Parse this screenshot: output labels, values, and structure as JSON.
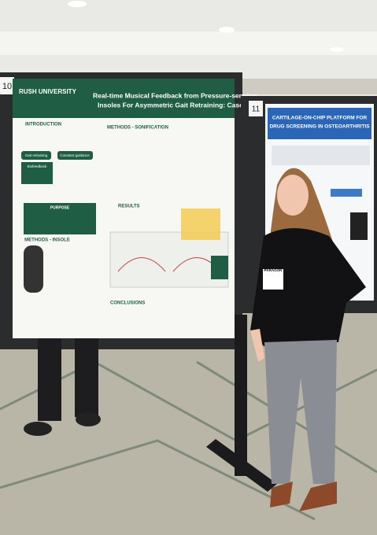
{
  "poster_left": {
    "number": "10",
    "institution": "RUSH UNIVERSITY",
    "title_lines": [
      "Real-time Musical Feedback from Pressure-sensing",
      "Insoles For Asymmetric Gait Retraining: Case study"
    ],
    "sections": [
      "INTRODUCTION",
      "METHODS - SONIFICATION",
      "RESULTS",
      "METHODS - INSOLE",
      "CONCLUSIONS"
    ],
    "chips": [
      "Gait retraining",
      "Constant guidance",
      "Biofeedback"
    ],
    "purpose": "PURPOSE"
  },
  "poster_right": {
    "number": "11",
    "title_lines": [
      "CARTILAGE-ON-CHIP PLATFORM FOR",
      "DRUG SCREENING IN OSTEOARTHRITIS"
    ]
  },
  "badge": "PARAGON"
}
